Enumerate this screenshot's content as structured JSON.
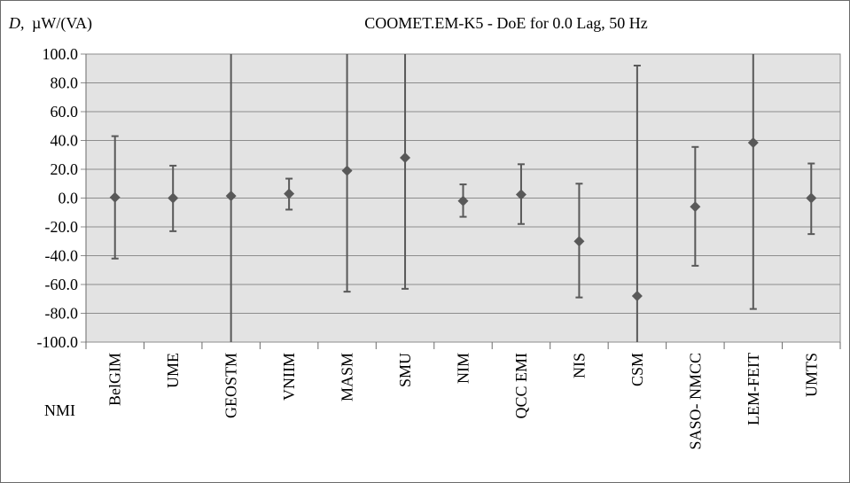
{
  "chart_data": {
    "type": "scatter",
    "title": "COOMET.EM-K5 - DoE for 0.0 Lag, 50 Hz",
    "ylabel_symbol": "D,",
    "ylabel_unit": "µW/(VA)",
    "xlabel": "NMI",
    "ylim": [
      -100,
      100
    ],
    "yticks": [
      "100.0",
      "80.0",
      "60.0",
      "40.0",
      "20.0",
      "0.0",
      "-20.0",
      "-40.0",
      "-60.0",
      "-80.0",
      "-100.0"
    ],
    "ytick_values": [
      100,
      80,
      60,
      40,
      20,
      0,
      -20,
      -40,
      -60,
      -80,
      -100
    ],
    "grid": true,
    "legend": "none",
    "categories": [
      "BelGIM",
      "UME",
      "GEOSTM",
      "VNIIM",
      "MASM",
      "SMU",
      "NIM",
      "QCC EMI",
      "NIS",
      "CSM",
      "SASO- NMCC",
      "LEM-FEIT",
      "UMTS"
    ],
    "values": [
      0.5,
      0.0,
      1.5,
      3.0,
      19.0,
      28.0,
      -2.0,
      2.5,
      -30.0,
      -68.0,
      -6.0,
      38.5,
      0.0
    ],
    "err_low": [
      -42.0,
      -23.0,
      -100.0,
      -8.0,
      -65.0,
      -63.0,
      -13.0,
      -18.0,
      -69.0,
      -100.0,
      -47.0,
      -77.0,
      -25.0
    ],
    "err_high": [
      43.0,
      22.5,
      100.0,
      13.5,
      100.0,
      100.0,
      9.5,
      23.5,
      10.0,
      92.0,
      35.5,
      100.0,
      24.0
    ],
    "colors": {
      "plot_bg": "#e3e3e3",
      "grid": "#8c8c8c",
      "marker": "#595959",
      "errorbar": "#595959"
    }
  }
}
